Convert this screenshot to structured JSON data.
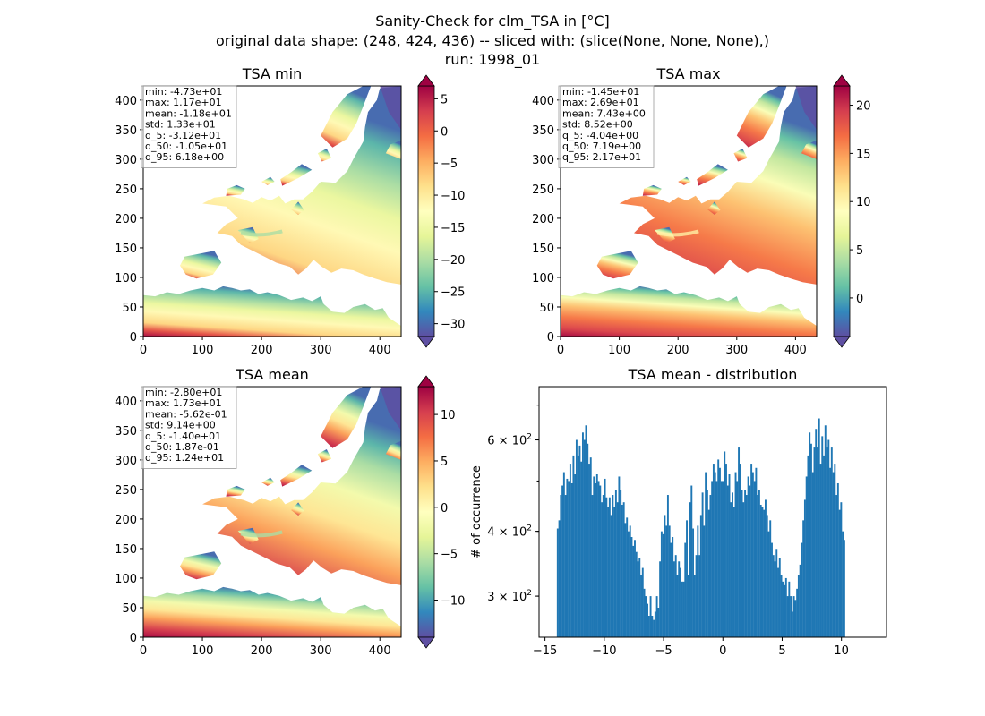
{
  "figure": {
    "title_lines": [
      "Sanity-Check for clm_TSA in [°C]",
      "original data shape: (248, 424, 436) -- sliced with: (slice(None, None, None),)",
      "run: 1998_01"
    ]
  },
  "colors": {
    "spectral_r": [
      "#5e4fa2",
      "#3288bd",
      "#66c2a5",
      "#abdda4",
      "#e6f598",
      "#ffffbf",
      "#fee08b",
      "#fdae61",
      "#f46d43",
      "#d53e4f",
      "#9e0142"
    ],
    "histogram_bar": "#1f77b4",
    "axis": "#000000",
    "background": "#ffffff"
  },
  "chart_data": [
    {
      "type": "heatmap",
      "title": "TSA min",
      "xlim": [
        0,
        436
      ],
      "ylim": [
        0,
        424
      ],
      "xticks": [
        0,
        100,
        200,
        300,
        400
      ],
      "yticks": [
        0,
        50,
        100,
        150,
        200,
        250,
        300,
        350,
        400
      ],
      "colorbar": {
        "min": -32,
        "max": 7,
        "ticks": [
          5,
          0,
          -5,
          -10,
          -15,
          -20,
          -25,
          -30
        ],
        "extend": "both"
      },
      "stats": [
        "min: -4.73e+01",
        "max: 1.17e+01",
        "mean: -1.18e+01",
        "std: 1.33e+01",
        "q_5: -3.12e+01",
        "q_50: -1.05e+01",
        "q_95: 6.18e+00"
      ]
    },
    {
      "type": "heatmap",
      "title": "TSA max",
      "xlim": [
        0,
        436
      ],
      "ylim": [
        0,
        424
      ],
      "xticks": [
        0,
        100,
        200,
        300,
        400
      ],
      "yticks": [
        0,
        50,
        100,
        150,
        200,
        250,
        300,
        350,
        400
      ],
      "colorbar": {
        "min": -4,
        "max": 22,
        "ticks": [
          20,
          15,
          10,
          5,
          0
        ],
        "extend": "both"
      },
      "stats": [
        "min: -1.45e+01",
        "max: 2.69e+01",
        "mean: 7.43e+00",
        "std: 8.52e+00",
        "q_5: -4.04e+00",
        "q_50: 7.19e+00",
        "q_95: 2.17e+01"
      ]
    },
    {
      "type": "heatmap",
      "title": "TSA mean",
      "xlim": [
        0,
        436
      ],
      "ylim": [
        0,
        424
      ],
      "xticks": [
        0,
        100,
        200,
        300,
        400
      ],
      "yticks": [
        0,
        50,
        100,
        150,
        200,
        250,
        300,
        350,
        400
      ],
      "colorbar": {
        "min": -14,
        "max": 13,
        "ticks": [
          10,
          5,
          0,
          -5,
          -10
        ],
        "extend": "both"
      },
      "stats": [
        "min: -2.80e+01",
        "max: 1.73e+01",
        "mean: -5.62e-01",
        "std: 9.14e+00",
        "q_5: -1.40e+01",
        "q_50: 1.87e-01",
        "q_95: 1.24e+01"
      ]
    },
    {
      "type": "bar",
      "title": "TSA mean - distribution",
      "ylabel": "# of occurrence",
      "yscale": "log",
      "xlim": [
        -15.5,
        13.8
      ],
      "ylim": [
        250,
        760
      ],
      "xticks": [
        -15,
        -10,
        -5,
        0,
        5,
        10
      ],
      "yticks_labeled": [
        {
          "value": 300,
          "label": "3 × 10²"
        },
        {
          "value": 400,
          "label": "4 × 10²"
        },
        {
          "value": 600,
          "label": "6 × 10²"
        }
      ],
      "bin_start": -14.0,
      "bin_width": 0.1328,
      "values": [
        405,
        420,
        470,
        490,
        520,
        470,
        505,
        500,
        540,
        495,
        560,
        515,
        600,
        560,
        585,
        545,
        620,
        600,
        640,
        590,
        540,
        555,
        470,
        510,
        495,
        515,
        500,
        490,
        455,
        470,
        505,
        465,
        445,
        465,
        430,
        470,
        445,
        480,
        455,
        510,
        480,
        450,
        455,
        415,
        425,
        400,
        410,
        390,
        375,
        385,
        365,
        350,
        355,
        330,
        340,
        310,
        300,
        290,
        275,
        300,
        275,
        270,
        280,
        300,
        285,
        350,
        400,
        395,
        430,
        410,
        470,
        410,
        380,
        390,
        350,
        360,
        330,
        350,
        340,
        320,
        320,
        380,
        420,
        330,
        455,
        490,
        405,
        330,
        360,
        410,
        360,
        430,
        475,
        410,
        520,
        480,
        440,
        470,
        500,
        540,
        520,
        500,
        550,
        530,
        500,
        500,
        570,
        540,
        490,
        515,
        455,
        475,
        445,
        520,
        500,
        580,
        540,
        480,
        455,
        480,
        470,
        510,
        490,
        540,
        520,
        500,
        530,
        470,
        480,
        450,
        445,
        440,
        460,
        430,
        400,
        420,
        380,
        360,
        350,
        370,
        340,
        355,
        330,
        320,
        315,
        325,
        300,
        320,
        300,
        280,
        300,
        295,
        310,
        330,
        345,
        380,
        420,
        460,
        510,
        560,
        620,
        590,
        520,
        580,
        630,
        580,
        660,
        540,
        610,
        560,
        640,
        580,
        600,
        530,
        580,
        520,
        540,
        470,
        495,
        440,
        455,
        400,
        385
      ]
    }
  ]
}
